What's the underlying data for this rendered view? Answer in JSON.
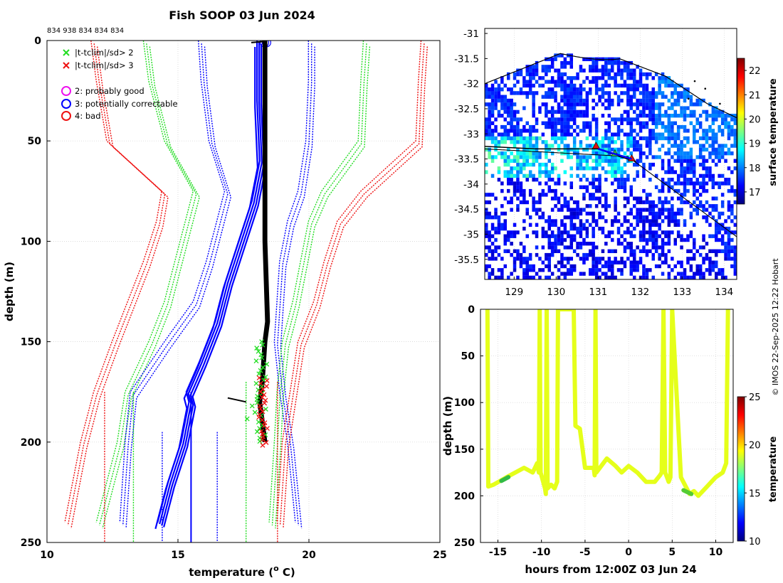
{
  "title": "Fish SOOP 03 Jun 2024",
  "side_credit": "© IMOS 22-Sep-2025 12:22 Hobart",
  "colors": {
    "blue": "#0000ff",
    "green": "#22dd22",
    "red": "#ee1111",
    "black": "#000000",
    "magenta": "#ee11ee",
    "grid": "#cfcfcf",
    "coast": "#000000"
  },
  "chart_data": [
    {
      "type": "line",
      "id": "profile",
      "title": "Fish SOOP 03 Jun 2024",
      "xlabel": "temperature (° C)",
      "xlabel_main": "temperature (",
      "xlabel_sup": "o",
      "xlabel_end": " C)",
      "ylabel": "depth (m)",
      "xlim": [
        10,
        25
      ],
      "ylim": [
        250,
        0
      ],
      "x_ticks": [
        "10",
        "15",
        "20",
        "25"
      ],
      "y_ticks": [
        "0",
        "50",
        "100",
        "150",
        "200",
        "250"
      ],
      "top_note": "834 938 834 834 834",
      "legend": [
        {
          "marker": "x",
          "color": "green",
          "label": "|t-tclim|/sd> 2"
        },
        {
          "marker": "x",
          "color": "red",
          "label": "|t-tclim|/sd> 3"
        },
        {
          "marker": "o",
          "color": "magenta",
          "label": "2: probably good"
        },
        {
          "marker": "o",
          "color": "blue",
          "label": "3: potentially correctable"
        },
        {
          "marker": "o",
          "color": "red",
          "label": "4: bad"
        }
      ],
      "climatology": {
        "depth": [
          0,
          20,
          50,
          75,
          90,
          110,
          130,
          150,
          175,
          200,
          240
        ],
        "red_left": [
          11.8,
          12.0,
          12.4,
          14.5,
          14.3,
          13.8,
          13.2,
          12.6,
          11.9,
          11.4,
          10.8
        ],
        "green_left": [
          13.8,
          14.0,
          14.6,
          15.7,
          15.4,
          15.0,
          14.6,
          14.0,
          13.1,
          12.8,
          12.0
        ],
        "blue_left": [
          15.9,
          16.0,
          16.3,
          16.9,
          16.6,
          16.2,
          15.7,
          14.6,
          13.3,
          13.1,
          12.9
        ],
        "blue_right": [
          20.1,
          20.1,
          20.0,
          19.7,
          19.3,
          19.0,
          18.9,
          18.8,
          19.0,
          19.3,
          19.6
        ],
        "green_right": [
          22.2,
          22.1,
          22.0,
          20.6,
          20.1,
          19.8,
          19.5,
          19.1,
          18.9,
          18.8,
          18.6
        ],
        "red_right": [
          24.4,
          24.3,
          24.2,
          22.1,
          21.2,
          20.7,
          20.3,
          19.7,
          19.4,
          19.1,
          18.9
        ],
        "vertical_lines": [
          {
            "color": "red",
            "x": 12.2,
            "from": 175,
            "to": 250
          },
          {
            "color": "green",
            "x": 13.3,
            "from": 175,
            "to": 250
          },
          {
            "color": "blue",
            "x": 14.4,
            "from": 195,
            "to": 250
          },
          {
            "color": "blue",
            "x": 16.5,
            "from": 195,
            "to": 250
          },
          {
            "color": "green",
            "x": 17.6,
            "from": 170,
            "to": 250
          },
          {
            "color": "red",
            "x": 18.8,
            "from": 170,
            "to": 250
          }
        ]
      },
      "blue_profiles": {
        "depth": [
          0,
          30,
          60,
          80,
          100,
          120,
          140,
          160,
          175,
          180,
          200,
          220,
          240
        ],
        "temp": [
          18.1,
          18.1,
          18.2,
          17.9,
          17.4,
          16.9,
          16.5,
          15.9,
          15.4,
          15.5,
          15.2,
          14.7,
          14.3
        ]
      },
      "blue_vertical": {
        "x": 15.5,
        "from": 175,
        "to": 250
      },
      "black_profile": {
        "depth": [
          0,
          50,
          100,
          140,
          150,
          170,
          180,
          190,
          200
        ],
        "temp": [
          18.3,
          18.3,
          18.3,
          18.4,
          18.3,
          18.2,
          18.1,
          18.2,
          18.3
        ]
      },
      "black_blip": {
        "depth": 178,
        "temp": [
          16.9,
          17.6
        ]
      },
      "green_marks": {
        "depth_from": 150,
        "depth_to": 200,
        "temp_center": 18.2
      },
      "red_marks": {
        "depth_from": 168,
        "depth_to": 202,
        "temp_center": 18.25
      }
    },
    {
      "type": "heatmap",
      "id": "map",
      "xlim": [
        128.3,
        134.3
      ],
      "ylim": [
        -35.9,
        -30.9
      ],
      "x_ticks": [
        "129",
        "130",
        "131",
        "132",
        "133",
        "134"
      ],
      "y_ticks": [
        "-31",
        "-31.5",
        "-32",
        "-32.5",
        "-33",
        "-33.5",
        "-34",
        "-34.5",
        "-35",
        "-35.5"
      ],
      "colorbar_label": "surface temperature",
      "colorbar_ticks": [
        "17",
        "18",
        "19",
        "20",
        "21",
        "22"
      ],
      "colorbar_range": [
        16.5,
        22.5
      ],
      "track": {
        "lon": [
          128.3,
          129.5,
          130.5,
          131.0,
          131.5,
          131.9
        ],
        "lat": [
          -33.25,
          -33.3,
          -33.3,
          -33.3,
          -33.45,
          -33.55
        ]
      },
      "drop_points": {
        "lon": [
          130.95,
          131.4,
          131.8
        ],
        "lat": [
          -33.25,
          -33.4,
          -33.5
        ]
      }
    },
    {
      "type": "scatter",
      "id": "section",
      "xlabel": "hours from 12:00Z 03 Jun 24",
      "ylabel": "depth (m)",
      "xlim": [
        -17,
        12
      ],
      "ylim": [
        250,
        0
      ],
      "x_ticks": [
        "-15",
        "-10",
        "-5",
        "0",
        "5",
        "10"
      ],
      "y_ticks": [
        "0",
        "50",
        "100",
        "150",
        "200",
        "250"
      ],
      "colorbar_label": "temperature",
      "colorbar_ticks": [
        "10",
        "15",
        "20",
        "25"
      ],
      "colorbar_range": [
        10,
        25
      ],
      "path": {
        "hours": [
          -16.2,
          -16.1,
          -15.5,
          -14,
          -12,
          -11,
          -10.5,
          -10.3,
          -10.2,
          -10.1,
          -9.6,
          -9.5,
          -9.4,
          -9.3,
          -8.9,
          -8.5,
          -8.2,
          -8.1,
          -7.8,
          -6.9,
          -6.7,
          -6.5,
          -6.3,
          -6.1,
          -5.6,
          -5,
          -4,
          -3.9,
          -3.8,
          -3.7,
          -2.5,
          -1.5,
          -0.8,
          0,
          1,
          2,
          3,
          3.6,
          3.8,
          4,
          4.2,
          4.4,
          4.6,
          4.8,
          5,
          6,
          7,
          7.5,
          8,
          9,
          10,
          10.8,
          11.2,
          11.4
        ],
        "depth": [
          0,
          190,
          188,
          180,
          170,
          175,
          165,
          175,
          0,
          175,
          192,
          198,
          0,
          192,
          188,
          192,
          185,
          0,
          0,
          0,
          0,
          0,
          0,
          125,
          128,
          170,
          170,
          178,
          0,
          175,
          160,
          168,
          175,
          168,
          175,
          185,
          185,
          178,
          175,
          0,
          175,
          180,
          185,
          180,
          0,
          180,
          198,
          195,
          200,
          190,
          180,
          175,
          165,
          0
        ],
        "value": 19
      }
    }
  ]
}
